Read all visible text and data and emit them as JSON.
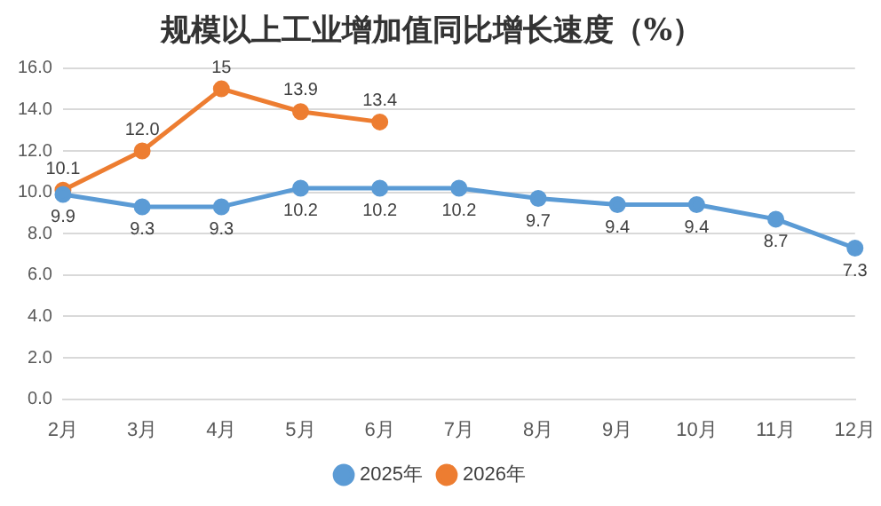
{
  "chart_data": {
    "type": "line",
    "title": "规模以上工业增加值同比增长速度（%）",
    "categories": [
      "2月",
      "3月",
      "4月",
      "5月",
      "6月",
      "7月",
      "8月",
      "9月",
      "10月",
      "11月",
      "12月"
    ],
    "series": [
      {
        "name": "2025年",
        "color": "#5b9bd5",
        "values": [
          9.9,
          9.3,
          9.3,
          10.2,
          10.2,
          10.2,
          9.7,
          9.4,
          9.4,
          8.7,
          7.3
        ],
        "value_labels": [
          "9.9",
          "9.3",
          "9.3",
          "10.2",
          "10.2",
          "10.2",
          "9.7",
          "9.4",
          "9.4",
          "8.7",
          "7.3"
        ]
      },
      {
        "name": "2026年",
        "color": "#ed7d31",
        "values": [
          10.1,
          12.0,
          15,
          13.9,
          13.4,
          null,
          null,
          null,
          null,
          null,
          null
        ],
        "value_labels": [
          "10.1",
          "12.0",
          "15",
          "13.9",
          "13.4",
          null,
          null,
          null,
          null,
          null,
          null
        ]
      }
    ],
    "ylim": [
      0,
      16
    ],
    "yticks": [
      {
        "value": 0,
        "label": "0.0"
      },
      {
        "value": 2,
        "label": "2.0"
      },
      {
        "value": 4,
        "label": "4.0"
      },
      {
        "value": 6,
        "label": "6.0"
      },
      {
        "value": 8,
        "label": "8.0"
      },
      {
        "value": 10,
        "label": "10.0"
      },
      {
        "value": 12,
        "label": "12.0"
      },
      {
        "value": 14,
        "label": "14.0"
      },
      {
        "value": 16,
        "label": "16.0"
      }
    ],
    "grid": "y",
    "legend": "bottom",
    "marker": "circle",
    "line_style": "solid"
  }
}
